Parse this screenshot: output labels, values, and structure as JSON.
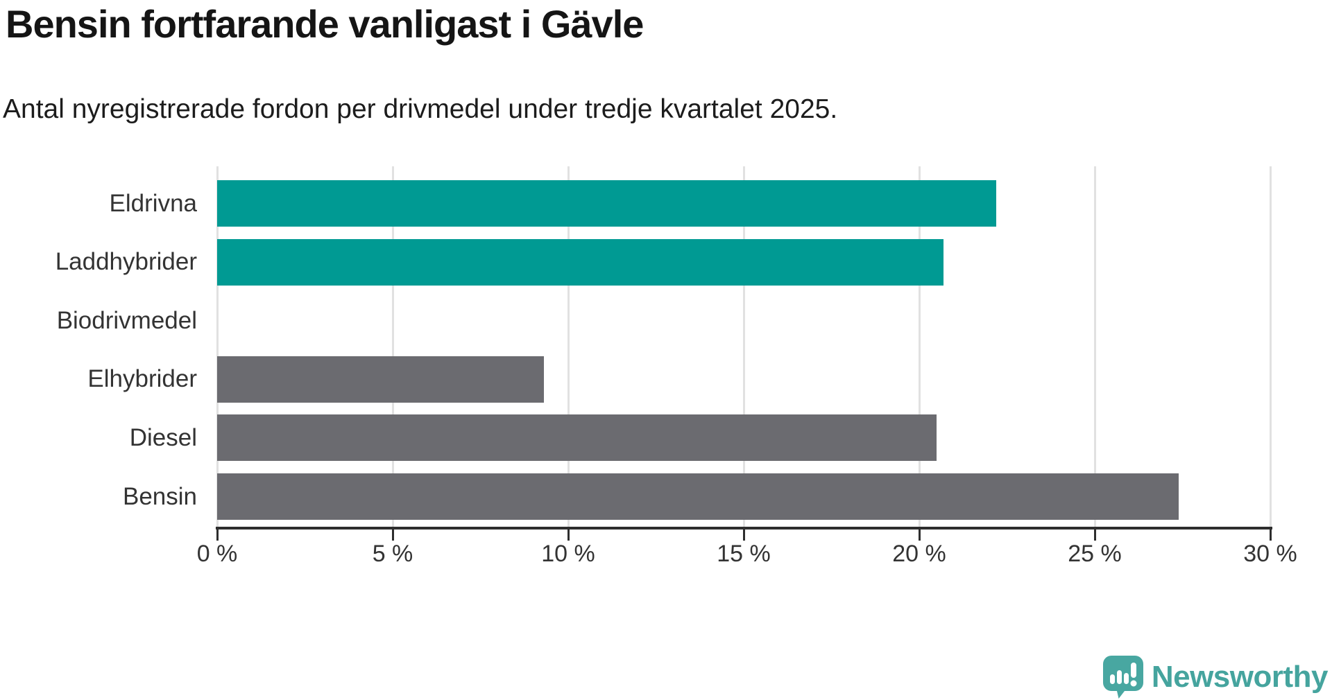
{
  "header": {
    "title": "Bensin fortfarande vanligast i Gävle",
    "subtitle": "Antal nyregistrerade fordon per drivmedel under tredje kvartalet 2025."
  },
  "chart_data": {
    "type": "bar",
    "orientation": "horizontal",
    "title": "Bensin fortfarande vanligast i Gävle",
    "subtitle": "Antal nyregistrerade fordon per drivmedel under tredje kvartalet 2025.",
    "categories": [
      "Eldrivna",
      "Laddhybrider",
      "Biodrivmedel",
      "Elhybrider",
      "Diesel",
      "Bensin"
    ],
    "values": [
      22.2,
      20.7,
      0.0,
      9.3,
      20.5,
      27.4
    ],
    "unit": "%",
    "bar_colors": [
      "#009a93",
      "#009a93",
      "#6b6b70",
      "#6b6b70",
      "#6b6b70",
      "#6b6b70"
    ],
    "highlight_color": "#009a93",
    "default_color": "#6b6b70",
    "xlim": [
      0,
      30
    ],
    "x_ticks": [
      0,
      5,
      10,
      15,
      20,
      25,
      30
    ],
    "x_tick_labels": [
      "0 %",
      "5 %",
      "10 %",
      "15 %",
      "20 %",
      "25 %",
      "30 %"
    ],
    "grid": true,
    "gridline_color": "#e1e1e1",
    "axis_color": "#2e2e2e",
    "label_color": "#333333"
  },
  "branding": {
    "logo_text": "Newsworthy",
    "logo_color": "#45a49e",
    "logo_icon": "speech-bubble-bar-chart-icon",
    "logo_icon_color": "#48a7a1"
  }
}
